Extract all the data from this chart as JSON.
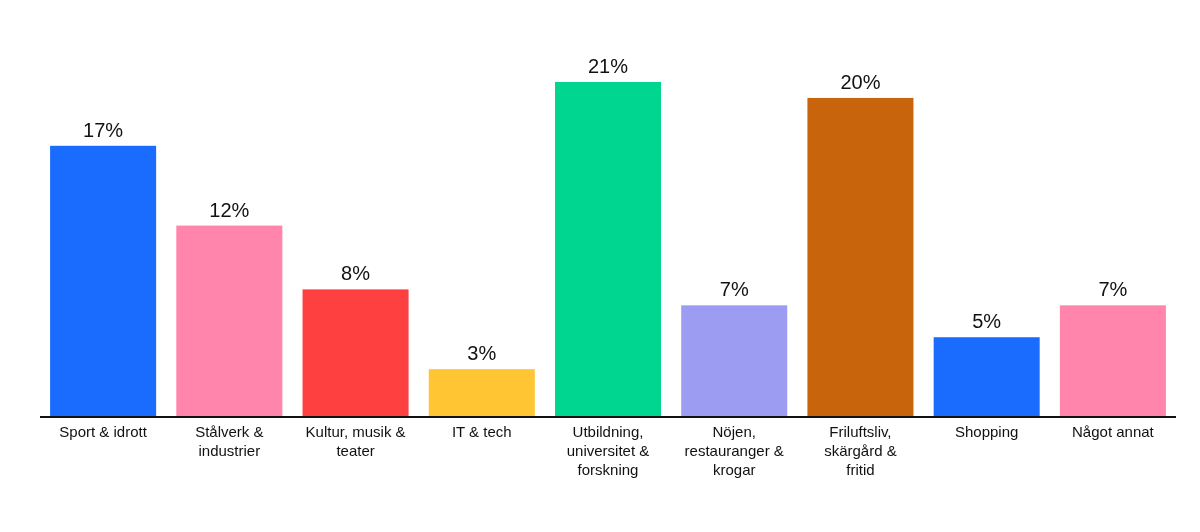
{
  "chart_data": {
    "type": "bar",
    "categories": [
      "Sport & idrott",
      "Stålverk & industrier",
      "Kultur, musik & teater",
      "IT & tech",
      "Utbildning, universitet & forskning",
      "Nöjen, restauranger & krogar",
      "Friluftsliv, skärgård & fritid",
      "Shopping",
      "Något annat"
    ],
    "values": [
      17,
      12,
      8,
      3,
      21,
      7,
      20,
      5,
      7
    ],
    "colors": [
      "#1a6cff",
      "#ff85ad",
      "#ff4040",
      "#ffc533",
      "#00d68f",
      "#9b9cf2",
      "#c8640c",
      "#1a6cff",
      "#ff85ad"
    ],
    "value_labels": [
      "17%",
      "12%",
      "8%",
      "3%",
      "21%",
      "7%",
      "20%",
      "5%",
      "7%"
    ]
  }
}
